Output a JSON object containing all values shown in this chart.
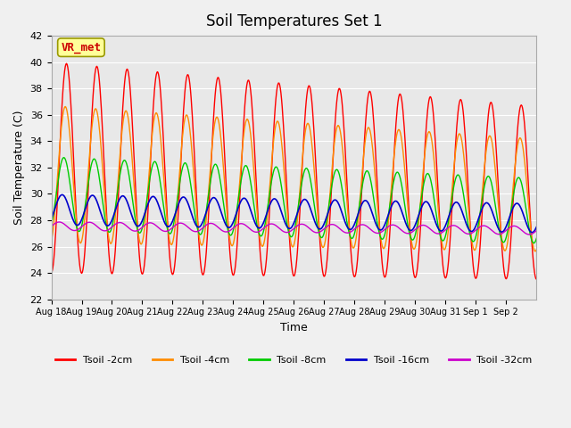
{
  "title": "Soil Temperatures Set 1",
  "xlabel": "Time",
  "ylabel": "Soil Temperature (C)",
  "ylim": [
    22,
    42
  ],
  "yticks": [
    22,
    24,
    26,
    28,
    30,
    32,
    34,
    36,
    38,
    40,
    42
  ],
  "xtick_labels": [
    "Aug 18",
    "Aug 19",
    "Aug 20",
    "Aug 21",
    "Aug 22",
    "Aug 23",
    "Aug 24",
    "Aug 25",
    "Aug 26",
    "Aug 27",
    "Aug 28",
    "Aug 29",
    "Aug 30",
    "Aug 31",
    "Sep 1",
    "Sep 2"
  ],
  "colors": {
    "Tsoil -2cm": "#ff0000",
    "Tsoil -4cm": "#ff8c00",
    "Tsoil -8cm": "#00cc00",
    "Tsoil -16cm": "#0000cc",
    "Tsoil -32cm": "#cc00cc"
  },
  "annotation_text": "VR_met",
  "annotation_color": "#cc0000",
  "annotation_bg": "#ffff99",
  "annotation_border": "#999900",
  "background_color": "#e8e8e8",
  "grid_color": "#ffffff",
  "num_days": 16,
  "samples_per_day": 48
}
